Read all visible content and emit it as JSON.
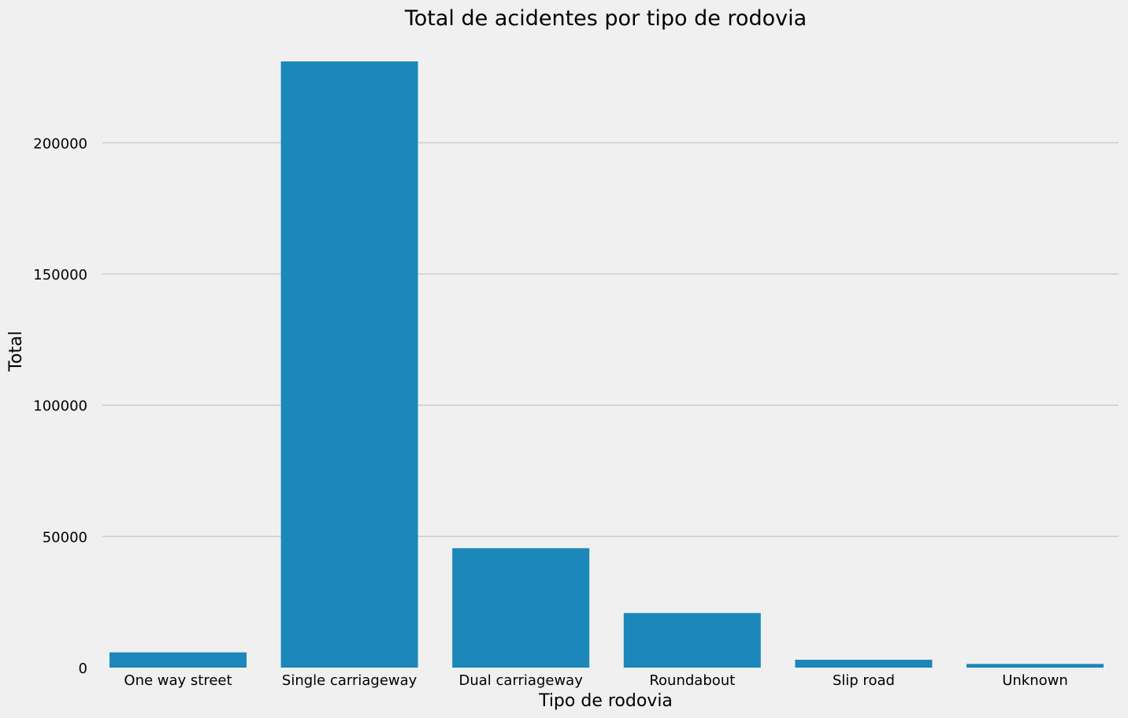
{
  "chart_data": {
    "type": "bar",
    "title": "Total de acidentes por tipo de rodovia",
    "xlabel": "Tipo de rodovia",
    "ylabel": "Total",
    "categories": [
      "One way street",
      "Single carriageway",
      "Dual carriageway",
      "Roundabout",
      "Slip road",
      "Unknown"
    ],
    "values": [
      5800,
      231000,
      45500,
      20800,
      3000,
      1400
    ],
    "ylim": [
      0,
      231000
    ],
    "yticks": [
      0,
      50000,
      100000,
      150000,
      200000
    ],
    "ytick_labels": [
      "0",
      "50000",
      "100000",
      "150000",
      "200000"
    ],
    "grid": true,
    "legend": "none",
    "colors": {
      "bar": "#1b87ba",
      "background": "#f0f0f0",
      "grid": "#cbcbcb"
    }
  }
}
